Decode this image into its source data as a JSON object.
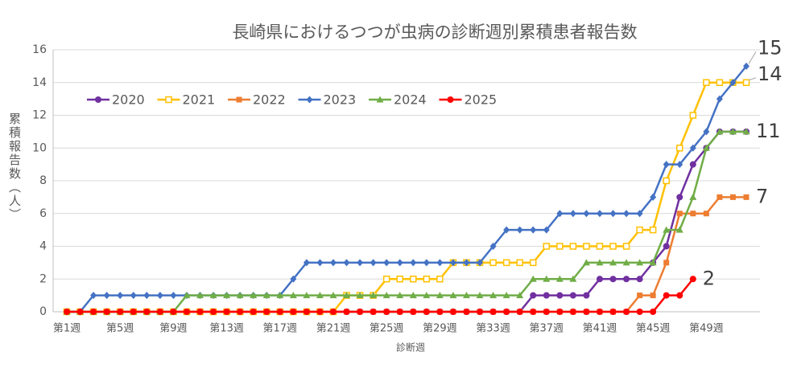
{
  "chart_data": {
    "type": "line",
    "title": "長崎県におけるつつが虫病の診断週別累積患者報告数",
    "x_label": "診断週",
    "y_label": "累積報告数（人）",
    "categories": [
      "第1週",
      null,
      null,
      null,
      "第5週",
      null,
      null,
      null,
      "第9週",
      null,
      null,
      null,
      "第13週",
      null,
      null,
      null,
      "第17週",
      null,
      null,
      null,
      "第21週",
      null,
      null,
      null,
      "第25週",
      null,
      null,
      null,
      "第29週",
      null,
      null,
      null,
      "第33週",
      null,
      null,
      null,
      "第37週",
      null,
      null,
      null,
      "第41週",
      null,
      null,
      null,
      "第45週",
      null,
      null,
      null,
      "第49週",
      null,
      null,
      null
    ],
    "ylim": [
      0,
      16
    ],
    "yticks": [
      0,
      2,
      4,
      6,
      8,
      10,
      12,
      14,
      16
    ],
    "grid": true,
    "legend": "top-left",
    "series": [
      {
        "name": "2020",
        "color": "#7030a0",
        "marker": "circle",
        "end_label": false,
        "values": [
          0,
          0,
          0,
          0,
          0,
          0,
          0,
          0,
          0,
          0,
          0,
          0,
          0,
          0,
          0,
          0,
          0,
          0,
          0,
          0,
          0,
          0,
          0,
          0,
          0,
          0,
          0,
          0,
          0,
          0,
          0,
          0,
          0,
          0,
          0,
          1,
          1,
          1,
          1,
          1,
          2,
          2,
          2,
          2,
          3,
          4,
          7,
          9,
          10,
          11,
          11,
          11
        ]
      },
      {
        "name": "2021",
        "color": "#ffc000",
        "marker": "square-open",
        "end_label": true,
        "values": [
          0,
          0,
          0,
          0,
          0,
          0,
          0,
          0,
          0,
          0,
          0,
          0,
          0,
          0,
          0,
          0,
          0,
          0,
          0,
          0,
          0,
          1,
          1,
          1,
          2,
          2,
          2,
          2,
          2,
          3,
          3,
          3,
          3,
          3,
          3,
          3,
          4,
          4,
          4,
          4,
          4,
          4,
          4,
          5,
          5,
          8,
          10,
          12,
          14,
          14,
          14,
          14
        ]
      },
      {
        "name": "2022",
        "color": "#ed7d31",
        "marker": "square",
        "end_label": true,
        "values": [
          0,
          0,
          0,
          0,
          0,
          0,
          0,
          0,
          0,
          0,
          0,
          0,
          0,
          0,
          0,
          0,
          0,
          0,
          0,
          0,
          0,
          0,
          0,
          0,
          0,
          0,
          0,
          0,
          0,
          0,
          0,
          0,
          0,
          0,
          0,
          0,
          0,
          0,
          0,
          0,
          0,
          0,
          0,
          1,
          1,
          3,
          6,
          6,
          6,
          7,
          7,
          7
        ]
      },
      {
        "name": "2023",
        "color": "#4472c4",
        "marker": "diamond",
        "end_label": true,
        "values": [
          0,
          0,
          1,
          1,
          1,
          1,
          1,
          1,
          1,
          1,
          1,
          1,
          1,
          1,
          1,
          1,
          1,
          2,
          3,
          3,
          3,
          3,
          3,
          3,
          3,
          3,
          3,
          3,
          3,
          3,
          3,
          3,
          4,
          5,
          5,
          5,
          5,
          6,
          6,
          6,
          6,
          6,
          6,
          6,
          7,
          9,
          9,
          10,
          11,
          13,
          14,
          15
        ]
      },
      {
        "name": "2024",
        "color": "#70ad47",
        "marker": "triangle",
        "end_label": true,
        "values": [
          0,
          0,
          0,
          0,
          0,
          0,
          0,
          0,
          0,
          1,
          1,
          1,
          1,
          1,
          1,
          1,
          1,
          1,
          1,
          1,
          1,
          1,
          1,
          1,
          1,
          1,
          1,
          1,
          1,
          1,
          1,
          1,
          1,
          1,
          1,
          2,
          2,
          2,
          2,
          3,
          3,
          3,
          3,
          3,
          3,
          5,
          5,
          7,
          10,
          11,
          11,
          11
        ]
      },
      {
        "name": "2025",
        "color": "#ff0000",
        "marker": "circle",
        "end_label": true,
        "values": [
          0,
          0,
          0,
          0,
          0,
          0,
          0,
          0,
          0,
          0,
          0,
          0,
          0,
          0,
          0,
          0,
          0,
          0,
          0,
          0,
          0,
          0,
          0,
          0,
          0,
          0,
          0,
          0,
          0,
          0,
          0,
          0,
          0,
          0,
          0,
          0,
          0,
          0,
          0,
          0,
          0,
          0,
          0,
          0,
          0,
          1,
          1,
          2,
          null,
          null,
          null,
          null
        ]
      }
    ]
  }
}
